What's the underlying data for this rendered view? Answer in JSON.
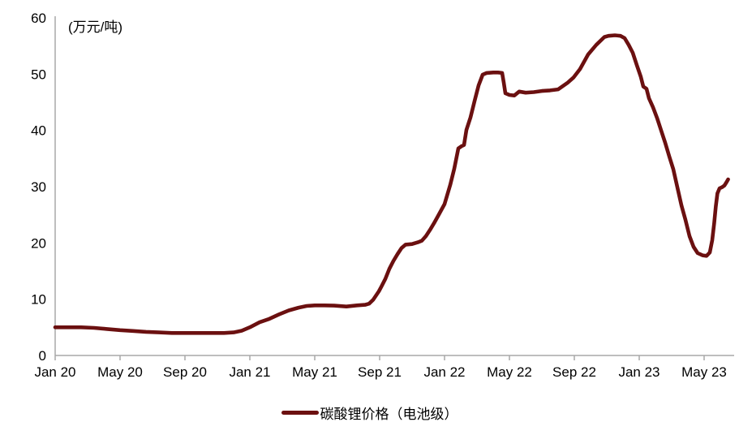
{
  "chart_data": {
    "type": "line",
    "title": "",
    "ylabel": "(万元/吨)",
    "xlabel": "",
    "ylim": [
      0,
      60
    ],
    "y_ticks": [
      0,
      10,
      20,
      30,
      40,
      50,
      60
    ],
    "x_unit": "months_since_Jan_2020",
    "x_ticks": [
      {
        "label": "Jan 20",
        "t": 0
      },
      {
        "label": "May 20",
        "t": 4
      },
      {
        "label": "Sep 20",
        "t": 8
      },
      {
        "label": "Jan 21",
        "t": 12
      },
      {
        "label": "May 21",
        "t": 16
      },
      {
        "label": "Sep 21",
        "t": 20
      },
      {
        "label": "Jan 22",
        "t": 24
      },
      {
        "label": "May 22",
        "t": 28
      },
      {
        "label": "Sep 22",
        "t": 32
      },
      {
        "label": "Jan 23",
        "t": 36
      },
      {
        "label": "May 23",
        "t": 40
      }
    ],
    "grid": false,
    "legend_position": "bottom",
    "series": [
      {
        "name": "碳酸锂价格（电池级）",
        "color": "#6b1010",
        "points": [
          [
            0,
            5.0
          ],
          [
            0.8,
            5.0
          ],
          [
            1.6,
            5.0
          ],
          [
            2.4,
            4.9
          ],
          [
            3.2,
            4.7
          ],
          [
            4,
            4.5
          ],
          [
            4.8,
            4.35
          ],
          [
            5.6,
            4.2
          ],
          [
            6.4,
            4.1
          ],
          [
            7.2,
            4.0
          ],
          [
            8,
            4.0
          ],
          [
            8.8,
            4.0
          ],
          [
            9.6,
            4.0
          ],
          [
            10.4,
            4.0
          ],
          [
            11,
            4.1
          ],
          [
            11.5,
            4.4
          ],
          [
            12,
            5.0
          ],
          [
            12.6,
            5.9
          ],
          [
            13.2,
            6.5
          ],
          [
            13.8,
            7.3
          ],
          [
            14.4,
            8.0
          ],
          [
            15,
            8.5
          ],
          [
            15.5,
            8.8
          ],
          [
            16,
            8.9
          ],
          [
            16.6,
            8.9
          ],
          [
            17.2,
            8.85
          ],
          [
            17.95,
            8.7
          ],
          [
            18.6,
            8.9
          ],
          [
            19.1,
            9.0
          ],
          [
            19.35,
            9.2
          ],
          [
            19.6,
            9.9
          ],
          [
            19.95,
            11.4
          ],
          [
            20.1,
            12.2
          ],
          [
            20.35,
            13.6
          ],
          [
            20.6,
            15.4
          ],
          [
            20.85,
            16.8
          ],
          [
            21.1,
            18.0
          ],
          [
            21.35,
            19.1
          ],
          [
            21.6,
            19.7
          ],
          [
            22,
            19.8
          ],
          [
            22.35,
            20.1
          ],
          [
            22.6,
            20.4
          ],
          [
            22.85,
            21.2
          ],
          [
            23.1,
            22.3
          ],
          [
            23.35,
            23.5
          ],
          [
            23.6,
            24.8
          ],
          [
            24,
            26.9
          ],
          [
            24.35,
            30.3
          ],
          [
            24.6,
            33.2
          ],
          [
            24.85,
            36.8
          ],
          [
            25.05,
            37.2
          ],
          [
            25.2,
            37.4
          ],
          [
            25.35,
            40.1
          ],
          [
            25.6,
            42.3
          ],
          [
            25.85,
            45.2
          ],
          [
            26.1,
            48.0
          ],
          [
            26.35,
            49.9
          ],
          [
            26.6,
            50.2
          ],
          [
            27,
            50.3
          ],
          [
            27.3,
            50.3
          ],
          [
            27.55,
            50.2
          ],
          [
            27.65,
            48.5
          ],
          [
            27.75,
            46.6
          ],
          [
            28,
            46.3
          ],
          [
            28.3,
            46.2
          ],
          [
            28.6,
            46.9
          ],
          [
            29,
            46.7
          ],
          [
            29.5,
            46.8
          ],
          [
            30,
            47.0
          ],
          [
            30.5,
            47.1
          ],
          [
            31,
            47.3
          ],
          [
            31.6,
            48.5
          ],
          [
            31.95,
            49.4
          ],
          [
            32.35,
            50.9
          ],
          [
            32.85,
            53.5
          ],
          [
            33.35,
            55.2
          ],
          [
            33.85,
            56.6
          ],
          [
            34.1,
            56.8
          ],
          [
            34.5,
            56.9
          ],
          [
            34.85,
            56.8
          ],
          [
            35.1,
            56.4
          ],
          [
            35.35,
            55.2
          ],
          [
            35.6,
            53.8
          ],
          [
            35.85,
            51.6
          ],
          [
            36.1,
            49.5
          ],
          [
            36.25,
            47.8
          ],
          [
            36.45,
            47.4
          ],
          [
            36.6,
            45.7
          ],
          [
            36.85,
            44.1
          ],
          [
            37.1,
            42.2
          ],
          [
            37.35,
            40.0
          ],
          [
            37.6,
            37.8
          ],
          [
            37.85,
            35.4
          ],
          [
            38.1,
            33.1
          ],
          [
            38.35,
            29.9
          ],
          [
            38.6,
            26.7
          ],
          [
            38.85,
            24.1
          ],
          [
            39.1,
            21.2
          ],
          [
            39.35,
            19.3
          ],
          [
            39.6,
            18.2
          ],
          [
            39.9,
            17.8
          ],
          [
            40.15,
            17.7
          ],
          [
            40.35,
            18.3
          ],
          [
            40.5,
            20.5
          ],
          [
            40.62,
            23.5
          ],
          [
            40.72,
            26.5
          ],
          [
            40.82,
            28.8
          ],
          [
            40.95,
            29.7
          ],
          [
            41.1,
            29.9
          ],
          [
            41.25,
            30.2
          ],
          [
            41.38,
            30.8
          ],
          [
            41.48,
            31.3
          ]
        ]
      }
    ]
  },
  "colors": {
    "axis": "#a8a8a8",
    "text": "#000000",
    "background": "#ffffff",
    "series_dark_red": "#6b1010"
  }
}
